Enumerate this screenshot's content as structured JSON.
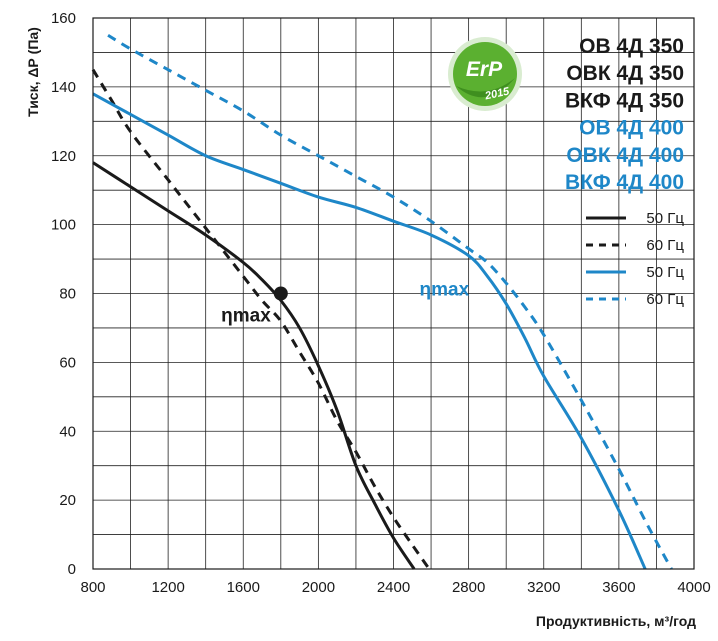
{
  "chart_data": {
    "type": "line",
    "title_lines": [
      {
        "text": "ОВ 4Д 350",
        "color": "#1a1a1a"
      },
      {
        "text": "ОВК 4Д 350",
        "color": "#1a1a1a"
      },
      {
        "text": "ВКФ 4Д 350",
        "color": "#1a1a1a"
      },
      {
        "text": "ОВ 4Д 400",
        "color": "#1e87c8"
      },
      {
        "text": "ОВК 4Д 400",
        "color": "#1e87c8"
      },
      {
        "text": "ВКФ 4Д 400",
        "color": "#1e87c8"
      }
    ],
    "xlabel": "Продуктивність, м³/год",
    "ylabel": "Тиск, ΔР (Па)",
    "xlim": [
      800,
      4000
    ],
    "ylim": [
      0,
      160
    ],
    "x_ticks": [
      800,
      1200,
      1600,
      2000,
      2400,
      2800,
      3200,
      3600,
      4000
    ],
    "y_ticks": [
      0,
      20,
      40,
      60,
      80,
      100,
      120,
      140,
      160
    ],
    "x_grid_step": 200,
    "y_grid_step": 10,
    "grid": true,
    "legend_position": "right",
    "series": [
      {
        "name": "50 Гц",
        "model": "ОВ 4Д 350",
        "color": "#1a1a1a",
        "dashed": false,
        "x": [
          800,
          1000,
          1200,
          1400,
          1600,
          1700,
          1800,
          1900,
          2000,
          2100,
          2200,
          2300,
          2400,
          2510
        ],
        "y": [
          118,
          111,
          104,
          97,
          89,
          84,
          78,
          70,
          59,
          46,
          30,
          19,
          9,
          0
        ]
      },
      {
        "name": "60 Гц",
        "model": "ОВ 4Д 350",
        "color": "#1a1a1a",
        "dashed": false,
        "x": [
          800,
          900,
          1000,
          1200,
          1400,
          1600,
          1700,
          1800,
          1900,
          2000,
          2100,
          2200,
          2300,
          2400,
          2500,
          2590
        ],
        "y": [
          145,
          136,
          127,
          113,
          99,
          85,
          78,
          72,
          63,
          54,
          43,
          34,
          24,
          15,
          7,
          0
        ]
      },
      {
        "name": "50 Гц",
        "model": "ОВ 4Д 400",
        "color": "#1e87c8",
        "dashed": false,
        "x": [
          800,
          1000,
          1200,
          1400,
          1600,
          1800,
          2000,
          2200,
          2400,
          2600,
          2800,
          2900,
          3000,
          3100,
          3200,
          3400,
          3600,
          3740
        ],
        "y": [
          138,
          132,
          126,
          120,
          116,
          112,
          108,
          105,
          101,
          97,
          91,
          85,
          77,
          67,
          56,
          38,
          17,
          0
        ]
      },
      {
        "name": "60 Гц",
        "model": "ОВ 4Д 400",
        "color": "#1e87c8",
        "dashed": false,
        "x": [
          880,
          1000,
          1200,
          1400,
          1600,
          1800,
          2000,
          2200,
          2400,
          2600,
          2800,
          2900,
          3000,
          3100,
          3200,
          3400,
          3600,
          3750,
          3880
        ],
        "y": [
          155,
          151,
          145,
          139,
          133,
          126,
          120,
          114,
          108,
          101,
          93,
          89,
          83,
          76,
          68,
          49,
          29,
          13,
          0
        ]
      }
    ],
    "annotations": [
      {
        "text": "ηmax",
        "color": "#1a1a1a",
        "x": 1800,
        "y": 80,
        "marker": true
      },
      {
        "text": "ηmax",
        "color": "#1e87c8",
        "x": 3000,
        "y": 80,
        "marker": false
      }
    ],
    "badge": {
      "text": "ErP",
      "year": "2015",
      "color": "#5bb030"
    }
  }
}
